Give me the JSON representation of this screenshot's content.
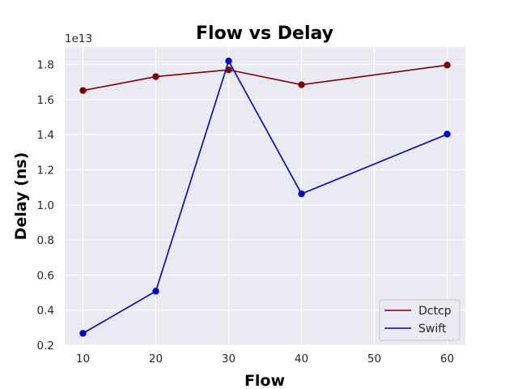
{
  "chart_data": {
    "type": "line",
    "title": "Flow vs Delay",
    "xlabel": "Flow",
    "ylabel": "Delay (ns)",
    "y_offset_label": "1e13",
    "x": [
      10,
      20,
      30,
      40,
      60
    ],
    "xlim": [
      7.5,
      62.5
    ],
    "ylim": [
      0.2,
      1.9
    ],
    "x_ticks": [
      10,
      20,
      30,
      40,
      50,
      60
    ],
    "y_ticks": [
      0.2,
      0.4,
      0.6,
      0.8,
      1.0,
      1.2,
      1.4,
      1.6,
      1.8
    ],
    "x_tick_labels": [
      "10",
      "20",
      "30",
      "40",
      "50",
      "60"
    ],
    "y_tick_labels": [
      "0.2",
      "0.4",
      "0.6",
      "0.8",
      "1.0",
      "1.2",
      "1.4",
      "1.6",
      "1.8"
    ],
    "grid": true,
    "legend_position": "bottom-right",
    "series": [
      {
        "name": "Dctcp",
        "color": "#800000",
        "values": [
          1.652,
          1.731,
          1.77,
          1.685,
          1.797
        ]
      },
      {
        "name": "Swift",
        "color": "#0000cc",
        "values": [
          0.268,
          0.508,
          1.82,
          1.063,
          1.403
        ]
      }
    ]
  }
}
